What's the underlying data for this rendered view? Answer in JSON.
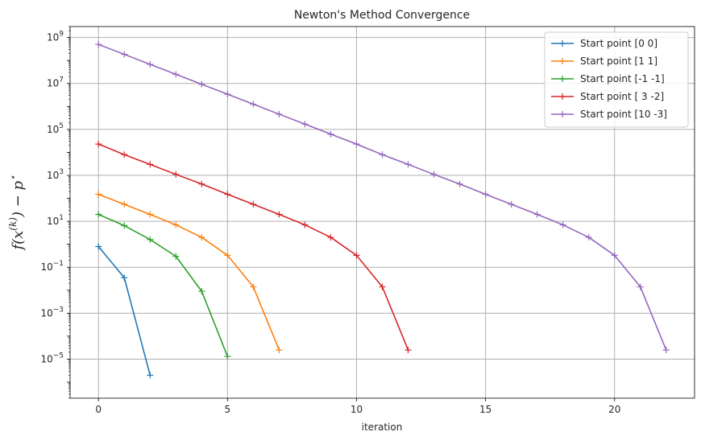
{
  "chart_data": {
    "type": "line",
    "title": "Newton's Method Convergence",
    "xlabel": "iteration",
    "ylabel": "f(x^(k)) − p*",
    "y_scale": "log",
    "xlim": [
      -1.1,
      23.1
    ],
    "ylim": [
      2e-07,
      3000000000
    ],
    "x_ticks": [
      0,
      5,
      10,
      15,
      20
    ],
    "x_tick_labels": [
      "0",
      "5",
      "10",
      "15",
      "20"
    ],
    "y_ticks": [
      1e-05,
      0.001,
      0.1,
      10,
      1000,
      100000,
      10000000,
      1000000000
    ],
    "y_tick_labels": [
      {
        "base": "10",
        "exp": "−5"
      },
      {
        "base": "10",
        "exp": "−3"
      },
      {
        "base": "10",
        "exp": "−1"
      },
      {
        "base": "10",
        "exp": "1"
      },
      {
        "base": "10",
        "exp": "3"
      },
      {
        "base": "10",
        "exp": "5"
      },
      {
        "base": "10",
        "exp": "7"
      },
      {
        "base": "10",
        "exp": "9"
      }
    ],
    "grid": true,
    "legend_position": "top-right",
    "series": [
      {
        "name": "Start point [0 0]",
        "color": "#1f77b4",
        "x": [
          0,
          1,
          2
        ],
        "y": [
          0.8,
          0.035,
          2e-06
        ]
      },
      {
        "name": "Start point [1 1]",
        "color": "#ff7f0e",
        "x": [
          0,
          1,
          2,
          3,
          4,
          5,
          6,
          7
        ],
        "y": [
          150,
          55,
          20,
          7,
          2,
          0.33,
          0.014,
          2.5e-05
        ]
      },
      {
        "name": "Start point [-1 -1]",
        "color": "#2ca02c",
        "x": [
          0,
          1,
          2,
          3,
          4,
          5
        ],
        "y": [
          20,
          6.5,
          1.6,
          0.3,
          0.009,
          1.3e-05
        ]
      },
      {
        "name": "Start point [ 3 -2]",
        "color": "#d62728",
        "x": [
          0,
          1,
          2,
          3,
          4,
          5,
          6,
          7,
          8,
          9,
          10,
          11,
          12
        ],
        "y": [
          23000,
          8000,
          3000,
          1100,
          420,
          150,
          55,
          20,
          7,
          2,
          0.33,
          0.014,
          2.5e-05
        ]
      },
      {
        "name": "Start point [10 -3]",
        "color": "#9467bd",
        "x": [
          0,
          1,
          2,
          3,
          4,
          5,
          6,
          7,
          8,
          9,
          10,
          11,
          12,
          13,
          14,
          15,
          16,
          17,
          18,
          19,
          20,
          21,
          22
        ],
        "y": [
          500000000,
          185000000,
          68000000,
          25000000,
          9200000,
          3400000,
          1250000,
          460000,
          170000,
          62000,
          23000,
          8000,
          3000,
          1100,
          420,
          150,
          55,
          20,
          7,
          2,
          0.33,
          0.014,
          2.5e-05
        ]
      }
    ]
  }
}
